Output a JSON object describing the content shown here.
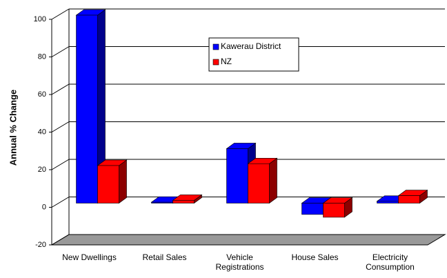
{
  "chart_data": {
    "type": "bar",
    "y_label": "Annual % Change",
    "categories": [
      "New Dwellings",
      "Retail Sales",
      "Vehicle Registrations",
      "House Sales",
      "Electricity Consumption"
    ],
    "series": [
      {
        "name": "Kawerau District",
        "color": "#0000ff",
        "values": [
          100,
          0.5,
          29,
          -6,
          1
        ]
      },
      {
        "name": "NZ",
        "color": "#ff0000",
        "values": [
          20,
          1.5,
          21,
          -7.5,
          4
        ]
      }
    ],
    "ylim": [
      -20,
      100
    ],
    "yticks": [
      -20,
      0,
      20,
      40,
      60,
      80,
      100
    ],
    "grid": true
  }
}
